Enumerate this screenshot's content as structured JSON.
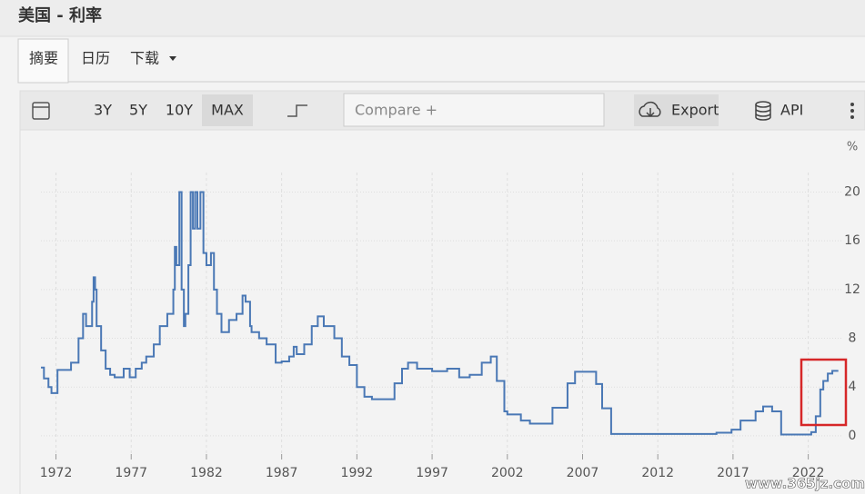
{
  "header": {
    "title": "美国 - 利率"
  },
  "tabs": [
    "摘要",
    "日历",
    "下载"
  ],
  "toolbar": {
    "ranges": [
      "3Y",
      "5Y",
      "10Y",
      "MAX"
    ],
    "compare_placeholder": "Compare +",
    "export": "Export",
    "api": "API"
  },
  "chart_data": {
    "type": "line",
    "unit": "%",
    "color": "#4a78b5",
    "grid": true,
    "step": true,
    "x": [
      1971.0,
      1971.2,
      1971.5,
      1971.7,
      1972.1,
      1972.8,
      1973.0,
      1973.5,
      1973.8,
      1974.0,
      1974.2,
      1974.4,
      1974.5,
      1974.6,
      1974.7,
      1975.0,
      1975.3,
      1975.6,
      1975.9,
      1976.3,
      1976.5,
      1976.9,
      1977.3,
      1977.7,
      1978.0,
      1978.5,
      1978.9,
      1979.4,
      1979.8,
      1979.9,
      1980.0,
      1980.2,
      1980.35,
      1980.5,
      1980.6,
      1980.8,
      1980.95,
      1981.1,
      1981.25,
      1981.4,
      1981.6,
      1981.8,
      1982.0,
      1982.3,
      1982.5,
      1982.7,
      1983.0,
      1983.5,
      1984.0,
      1984.4,
      1984.6,
      1984.9,
      1985.0,
      1985.5,
      1986.0,
      1986.6,
      1987.0,
      1987.5,
      1987.8,
      1988.0,
      1988.5,
      1989.0,
      1989.4,
      1989.8,
      1990.5,
      1991.0,
      1991.5,
      1992.0,
      1992.5,
      1993.0,
      1994.0,
      1994.5,
      1995.0,
      1995.4,
      1996.0,
      1997.0,
      1998.0,
      1998.8,
      1999.5,
      2000.3,
      2000.9,
      2001.3,
      2001.8,
      2002.0,
      2002.9,
      2003.5,
      2004.4,
      2005.0,
      2006.0,
      2006.5,
      2007.5,
      2007.9,
      2008.3,
      2008.9,
      2015.9,
      2016.9,
      2017.5,
      2018.5,
      2019.0,
      2019.6,
      2020.2,
      2022.2,
      2022.5,
      2022.8,
      2023.0,
      2023.3,
      2023.6,
      2024.0
    ],
    "values": [
      5.6,
      4.7,
      4.0,
      3.5,
      5.4,
      5.4,
      6,
      8,
      10,
      9,
      9,
      11,
      13,
      12,
      9,
      7,
      5.5,
      5,
      4.8,
      4.8,
      5.5,
      4.8,
      5.5,
      6,
      6.5,
      7.5,
      9,
      10,
      12,
      15.5,
      14,
      20,
      12,
      9,
      10,
      14,
      20,
      17,
      20,
      17,
      20,
      15,
      14,
      15,
      12,
      10,
      8.5,
      9.5,
      10,
      11.5,
      11,
      9,
      8.5,
      8,
      7.5,
      6,
      6.1,
      6.5,
      7.3,
      6.7,
      7.5,
      9,
      9.8,
      9,
      8,
      6.5,
      5.8,
      4,
      3.2,
      3,
      3,
      4.3,
      5.5,
      6,
      5.5,
      5.3,
      5.5,
      4.8,
      5,
      6,
      6.5,
      4.5,
      2,
      1.75,
      1.25,
      1,
      1,
      2.3,
      4.3,
      5.25,
      5.25,
      4.25,
      2.25,
      0.15,
      0.25,
      0.5,
      1.25,
      2,
      2.4,
      2.0,
      0.1,
      0.3,
      1.6,
      3.8,
      4.5,
      5.1,
      5.33,
      5.33
    ],
    "xlim": [
      1971,
      2024.2
    ],
    "xticks": [
      1972,
      1977,
      1982,
      1987,
      1992,
      1997,
      2002,
      2007,
      2012,
      2017,
      2022
    ],
    "ylim": [
      -1.5,
      21.6
    ],
    "yticks": [
      0,
      4,
      8,
      12,
      16,
      20
    ]
  },
  "watermark": "www.365jz.com"
}
